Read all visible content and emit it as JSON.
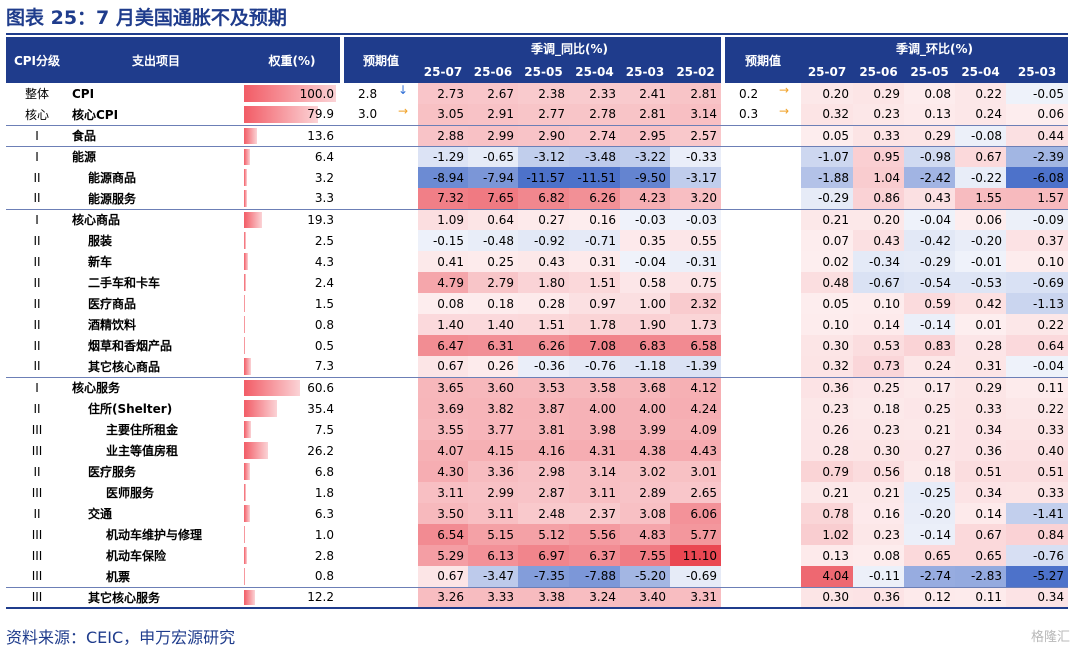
{
  "title": "图表 25：7 月美国通胀不及预期",
  "source": "资料来源：CEIC，申万宏源研究",
  "watermark": "格隆汇",
  "headers": {
    "level": "CPI分级",
    "item": "支出项目",
    "weight": "权重(%)",
    "expected": "预期值",
    "yoy_group": "季调_同比(%)",
    "mom_group": "季调_环比(%)",
    "yoy_periods": [
      "25-07",
      "25-06",
      "25-05",
      "25-04",
      "25-03",
      "25-02"
    ],
    "mom_periods": [
      "25-07",
      "25-06",
      "25-05",
      "25-04",
      "25-03"
    ]
  },
  "rows": [
    {
      "level": "整体",
      "name": "CPI",
      "indent": 0,
      "weight": "100.0",
      "w": 100.0,
      "exp_yoy": "2.8",
      "exp_yoy_arrow": "↓",
      "exp_yoy_dir": "down",
      "yoy": [
        "2.73",
        "2.67",
        "2.38",
        "2.33",
        "2.41",
        "2.81"
      ],
      "exp_mom": "0.2",
      "exp_mom_arrow": "→",
      "exp_mom_dir": "right",
      "mom": [
        "0.20",
        "0.29",
        "0.08",
        "0.22",
        "-0.05"
      ],
      "sep": false
    },
    {
      "level": "核心",
      "name": "核心CPI",
      "indent": 0,
      "weight": "79.9",
      "w": 79.9,
      "exp_yoy": "3.0",
      "exp_yoy_arrow": "→",
      "exp_yoy_dir": "right",
      "yoy": [
        "3.05",
        "2.91",
        "2.77",
        "2.78",
        "2.81",
        "3.14"
      ],
      "exp_mom": "0.3",
      "exp_mom_arrow": "→",
      "exp_mom_dir": "right",
      "mom": [
        "0.32",
        "0.23",
        "0.13",
        "0.24",
        "0.06"
      ],
      "sep": false
    },
    {
      "level": "I",
      "name": "食品",
      "indent": 0,
      "weight": "13.6",
      "w": 13.6,
      "yoy": [
        "2.88",
        "2.99",
        "2.90",
        "2.74",
        "2.95",
        "2.57"
      ],
      "mom": [
        "0.05",
        "0.33",
        "0.29",
        "-0.08",
        "0.44"
      ],
      "sep": true
    },
    {
      "level": "I",
      "name": "能源",
      "indent": 0,
      "weight": "6.4",
      "w": 6.4,
      "yoy": [
        "-1.29",
        "-0.65",
        "-3.12",
        "-3.48",
        "-3.22",
        "-0.33"
      ],
      "mom": [
        "-1.07",
        "0.95",
        "-0.98",
        "0.67",
        "-2.39"
      ],
      "sep": true
    },
    {
      "level": "II",
      "name": "能源商品",
      "indent": 1,
      "weight": "3.2",
      "w": 3.2,
      "yoy": [
        "-8.94",
        "-7.94",
        "-11.57",
        "-11.51",
        "-9.50",
        "-3.17"
      ],
      "mom": [
        "-1.88",
        "1.04",
        "-2.42",
        "-0.22",
        "-6.08"
      ],
      "sep": false
    },
    {
      "level": "II",
      "name": "能源服务",
      "indent": 1,
      "weight": "3.3",
      "w": 3.3,
      "yoy": [
        "7.32",
        "7.65",
        "6.82",
        "6.26",
        "4.23",
        "3.20"
      ],
      "mom": [
        "-0.29",
        "0.86",
        "0.43",
        "1.55",
        "1.57"
      ],
      "sep": false
    },
    {
      "level": "I",
      "name": "核心商品",
      "indent": 0,
      "weight": "19.3",
      "w": 19.3,
      "yoy": [
        "1.09",
        "0.64",
        "0.27",
        "0.16",
        "-0.03",
        "-0.03"
      ],
      "mom": [
        "0.21",
        "0.20",
        "-0.04",
        "0.06",
        "-0.09"
      ],
      "sep": true
    },
    {
      "level": "II",
      "name": "服装",
      "indent": 1,
      "weight": "2.5",
      "w": 2.5,
      "yoy": [
        "-0.15",
        "-0.48",
        "-0.92",
        "-0.71",
        "0.35",
        "0.55"
      ],
      "mom": [
        "0.07",
        "0.43",
        "-0.42",
        "-0.20",
        "0.37"
      ],
      "sep": false
    },
    {
      "level": "II",
      "name": "新车",
      "indent": 1,
      "weight": "4.3",
      "w": 4.3,
      "yoy": [
        "0.41",
        "0.25",
        "0.43",
        "0.31",
        "-0.04",
        "-0.31"
      ],
      "mom": [
        "0.02",
        "-0.34",
        "-0.29",
        "-0.01",
        "0.10"
      ],
      "sep": false
    },
    {
      "level": "II",
      "name": "二手车和卡车",
      "indent": 1,
      "weight": "2.4",
      "w": 2.4,
      "yoy": [
        "4.79",
        "2.79",
        "1.80",
        "1.51",
        "0.58",
        "0.75"
      ],
      "mom": [
        "0.48",
        "-0.67",
        "-0.54",
        "-0.53",
        "-0.69"
      ],
      "sep": false
    },
    {
      "level": "II",
      "name": "医疗商品",
      "indent": 1,
      "weight": "1.5",
      "w": 1.5,
      "yoy": [
        "0.08",
        "0.18",
        "0.28",
        "0.97",
        "1.00",
        "2.32"
      ],
      "mom": [
        "0.05",
        "0.10",
        "0.59",
        "0.42",
        "-1.13"
      ],
      "sep": false
    },
    {
      "level": "II",
      "name": "酒精饮料",
      "indent": 1,
      "weight": "0.8",
      "w": 0.8,
      "yoy": [
        "1.40",
        "1.40",
        "1.51",
        "1.78",
        "1.90",
        "1.73"
      ],
      "mom": [
        "0.10",
        "0.14",
        "-0.14",
        "0.01",
        "0.22"
      ],
      "sep": false
    },
    {
      "level": "II",
      "name": "烟草和香烟产品",
      "indent": 1,
      "weight": "0.5",
      "w": 0.5,
      "yoy": [
        "6.47",
        "6.31",
        "6.26",
        "7.08",
        "6.83",
        "6.58"
      ],
      "mom": [
        "0.30",
        "0.53",
        "0.83",
        "0.28",
        "0.64"
      ],
      "sep": false
    },
    {
      "level": "II",
      "name": "其它核心商品",
      "indent": 1,
      "weight": "7.3",
      "w": 7.3,
      "yoy": [
        "0.67",
        "0.26",
        "-0.36",
        "-0.76",
        "-1.18",
        "-1.39"
      ],
      "mom": [
        "0.32",
        "0.73",
        "0.24",
        "0.31",
        "-0.04"
      ],
      "sep": false
    },
    {
      "level": "I",
      "name": "核心服务",
      "indent": 0,
      "weight": "60.6",
      "w": 60.6,
      "yoy": [
        "3.65",
        "3.60",
        "3.53",
        "3.58",
        "3.68",
        "4.12"
      ],
      "mom": [
        "0.36",
        "0.25",
        "0.17",
        "0.29",
        "0.11"
      ],
      "sep": true
    },
    {
      "level": "II",
      "name": "住所(Shelter)",
      "indent": 1,
      "weight": "35.4",
      "w": 35.4,
      "yoy": [
        "3.69",
        "3.82",
        "3.87",
        "4.00",
        "4.00",
        "4.24"
      ],
      "mom": [
        "0.23",
        "0.18",
        "0.25",
        "0.33",
        "0.22"
      ],
      "sep": false
    },
    {
      "level": "III",
      "name": "主要住所租金",
      "indent": 2,
      "weight": "7.5",
      "w": 7.5,
      "yoy": [
        "3.55",
        "3.77",
        "3.81",
        "3.98",
        "3.99",
        "4.09"
      ],
      "mom": [
        "0.26",
        "0.23",
        "0.21",
        "0.34",
        "0.33"
      ],
      "sep": false
    },
    {
      "level": "III",
      "name": "业主等值房租",
      "indent": 2,
      "weight": "26.2",
      "w": 26.2,
      "yoy": [
        "4.07",
        "4.15",
        "4.16",
        "4.31",
        "4.38",
        "4.43"
      ],
      "mom": [
        "0.28",
        "0.30",
        "0.27",
        "0.36",
        "0.40"
      ],
      "sep": false
    },
    {
      "level": "II",
      "name": "医疗服务",
      "indent": 1,
      "weight": "6.8",
      "w": 6.8,
      "yoy": [
        "4.30",
        "3.36",
        "2.98",
        "3.14",
        "3.02",
        "3.01"
      ],
      "mom": [
        "0.79",
        "0.56",
        "0.18",
        "0.51",
        "0.51"
      ],
      "sep": false
    },
    {
      "level": "III",
      "name": "医师服务",
      "indent": 2,
      "weight": "1.8",
      "w": 1.8,
      "yoy": [
        "3.11",
        "2.99",
        "2.87",
        "3.11",
        "2.89",
        "2.65"
      ],
      "mom": [
        "0.21",
        "0.21",
        "-0.25",
        "0.34",
        "0.33"
      ],
      "sep": false
    },
    {
      "level": "II",
      "name": "交通",
      "indent": 1,
      "weight": "6.3",
      "w": 6.3,
      "yoy": [
        "3.50",
        "3.11",
        "2.48",
        "2.37",
        "3.08",
        "6.06"
      ],
      "mom": [
        "0.78",
        "0.16",
        "-0.20",
        "0.14",
        "-1.41"
      ],
      "sep": false
    },
    {
      "level": "III",
      "name": "机动车维护与修理",
      "indent": 2,
      "weight": "1.0",
      "w": 1.0,
      "yoy": [
        "6.54",
        "5.15",
        "5.12",
        "5.56",
        "4.83",
        "5.77"
      ],
      "mom": [
        "1.02",
        "0.23",
        "-0.14",
        "0.67",
        "0.84"
      ],
      "sep": false
    },
    {
      "level": "III",
      "name": "机动车保险",
      "indent": 2,
      "weight": "2.8",
      "w": 2.8,
      "yoy": [
        "5.29",
        "6.13",
        "6.97",
        "6.37",
        "7.55",
        "11.10"
      ],
      "mom": [
        "0.13",
        "0.08",
        "0.65",
        "0.65",
        "-0.76"
      ],
      "sep": false
    },
    {
      "level": "III",
      "name": "机票",
      "indent": 2,
      "weight": "0.8",
      "w": 0.8,
      "yoy": [
        "0.67",
        "-3.47",
        "-7.35",
        "-7.88",
        "-5.20",
        "-0.69"
      ],
      "mom": [
        "4.04",
        "-0.11",
        "-2.74",
        "-2.83",
        "-5.27"
      ],
      "sep": false
    },
    {
      "level": "III",
      "name": "其它核心服务",
      "indent": 1,
      "weight": "12.2",
      "w": 12.2,
      "yoy": [
        "3.26",
        "3.33",
        "3.38",
        "3.24",
        "3.40",
        "3.31"
      ],
      "mom": [
        "0.30",
        "0.36",
        "0.12",
        "0.11",
        "0.34"
      ],
      "sep": true
    }
  ],
  "colors": {
    "header_bg": "#1f3c8c",
    "title": "#1f3c8c",
    "positive": "#e8333f",
    "negative": "#3a63c4",
    "weight_bar": "#f25c66"
  }
}
